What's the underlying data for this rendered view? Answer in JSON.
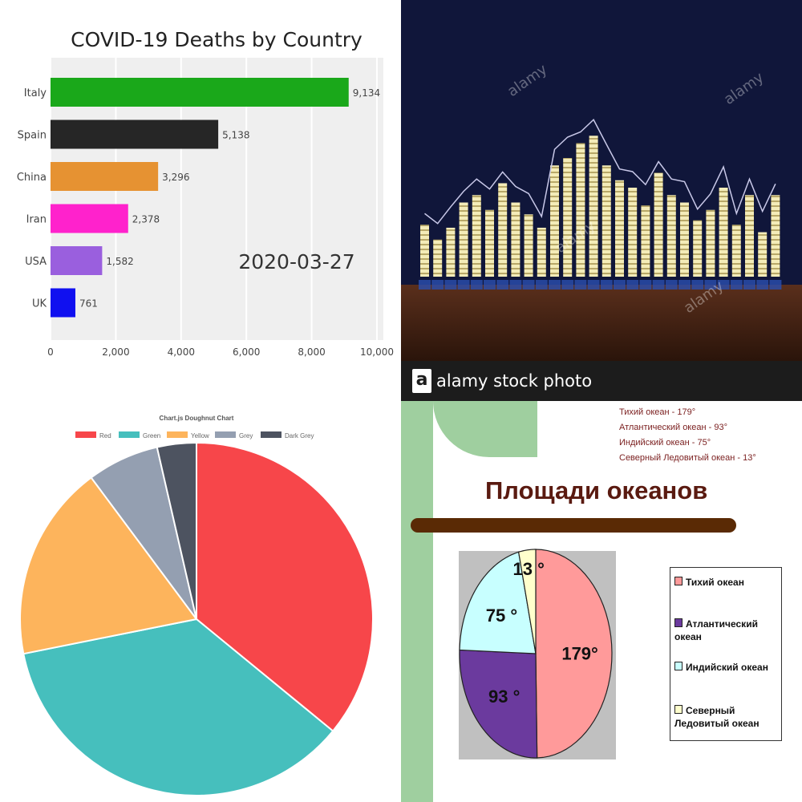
{
  "chart_data": [
    {
      "type": "bar",
      "orientation": "horizontal",
      "title": "COVID-19 Deaths by Country",
      "categories": [
        "Italy",
        "Spain",
        "China",
        "Iran",
        "USA",
        "UK"
      ],
      "values": [
        9134,
        5138,
        3296,
        2378,
        1582,
        761
      ],
      "value_labels": [
        "9,134",
        "5,138",
        "3,296",
        "2,378",
        "1,582",
        "761"
      ],
      "colors": [
        "#1aa81a",
        "#262626",
        "#e69232",
        "#ff22cc",
        "#9a5fde",
        "#1010f0"
      ],
      "xlim": [
        0,
        10000
      ],
      "ticks": [
        0,
        2000,
        4000,
        6000,
        8000,
        10000
      ],
      "tick_labels": [
        "0",
        "2,000",
        "4,000",
        "6,000",
        "8,000",
        "10,000"
      ],
      "annotation": "2020-03-27",
      "grid": true
    },
    {
      "type": "bar",
      "description_source": "stock photo",
      "watermark": "alamy",
      "footer_text": "alamy stock photo",
      "logo_letter": "a",
      "bar_heights_relative": [
        0.35,
        0.25,
        0.33,
        0.5,
        0.55,
        0.45,
        0.63,
        0.5,
        0.42,
        0.33,
        0.75,
        0.8,
        0.9,
        0.95,
        0.75,
        0.65,
        0.6,
        0.48,
        0.7,
        0.55,
        0.5,
        0.38,
        0.45,
        0.6,
        0.35,
        0.55,
        0.3,
        0.55
      ]
    },
    {
      "type": "pie",
      "title": "Chart.js Doughnut Chart",
      "labels": [
        "Red",
        "Green",
        "Yellow",
        "Grey",
        "Dark Grey"
      ],
      "values": [
        300,
        300,
        150,
        55,
        30
      ],
      "colors": [
        "#f7464a",
        "#46bfbd",
        "#fdb45c",
        "#949fb1",
        "#4d5360"
      ],
      "legend_position": "top"
    },
    {
      "type": "pie",
      "title": "Площади океанов",
      "info_lines": [
        "Тихий океан - 179°",
        "Атлантический океан - 93°",
        "Индийский океан - 75°",
        "Северный Ледовитый океан - 13°"
      ],
      "labels": [
        "Тихий океан",
        "Атлантический океан",
        "Индийский океан",
        "Северный Ледовитый океан"
      ],
      "legend_lines": [
        [
          "Тихий океан"
        ],
        [
          "Атлантический",
          "океан"
        ],
        [
          "Индийский океан"
        ],
        [
          "Северный",
          "Ледовитый океан"
        ]
      ],
      "values": [
        179,
        93,
        75,
        13
      ],
      "value_labels": [
        "179°",
        "93 °",
        "75 °",
        "13 °"
      ],
      "colors": [
        "#ff9a9a",
        "#6b3a9e",
        "#c8ffff",
        "#ffffcc"
      ],
      "legend_position": "right"
    }
  ]
}
